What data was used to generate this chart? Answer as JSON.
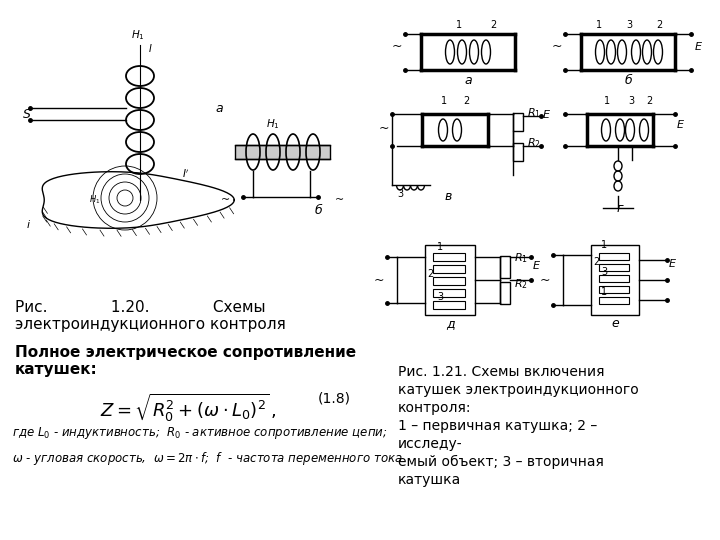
{
  "bg_color": "#ffffff",
  "text_color": "#000000",
  "fig_caption": "Рис.             1.20.             Схемы\nэлектроиндукционного контроля",
  "bold_heading_1": "Полное электрическое сопротивление",
  "bold_heading_2": "катушек:",
  "formula": "$Z = \\sqrt{R_0^2 + (\\omega \\cdot L_0)^2}\\,,$",
  "formula_number": "(1.8)",
  "note1": "где $L_0$ - индуктивность;  $R_0$ - активное сопротивление цепи;",
  "note2": "$\\omega$ - угловая скорость,  $\\omega = 2\\pi \\cdot f$;  $f$  - частота переменного тока.",
  "right_caption_1": "Рис. 1.21. Схемы включения",
  "right_caption_2": "катушек электроиндукционного",
  "right_caption_3": "контроля:",
  "right_caption_4": "1 – первичная катушка; 2 –",
  "right_caption_5": "исследу-",
  "right_caption_6": "емый объект; 3 – вторичная",
  "right_caption_7": "катушка",
  "lw": 1.0,
  "lw_thick": 2.5
}
